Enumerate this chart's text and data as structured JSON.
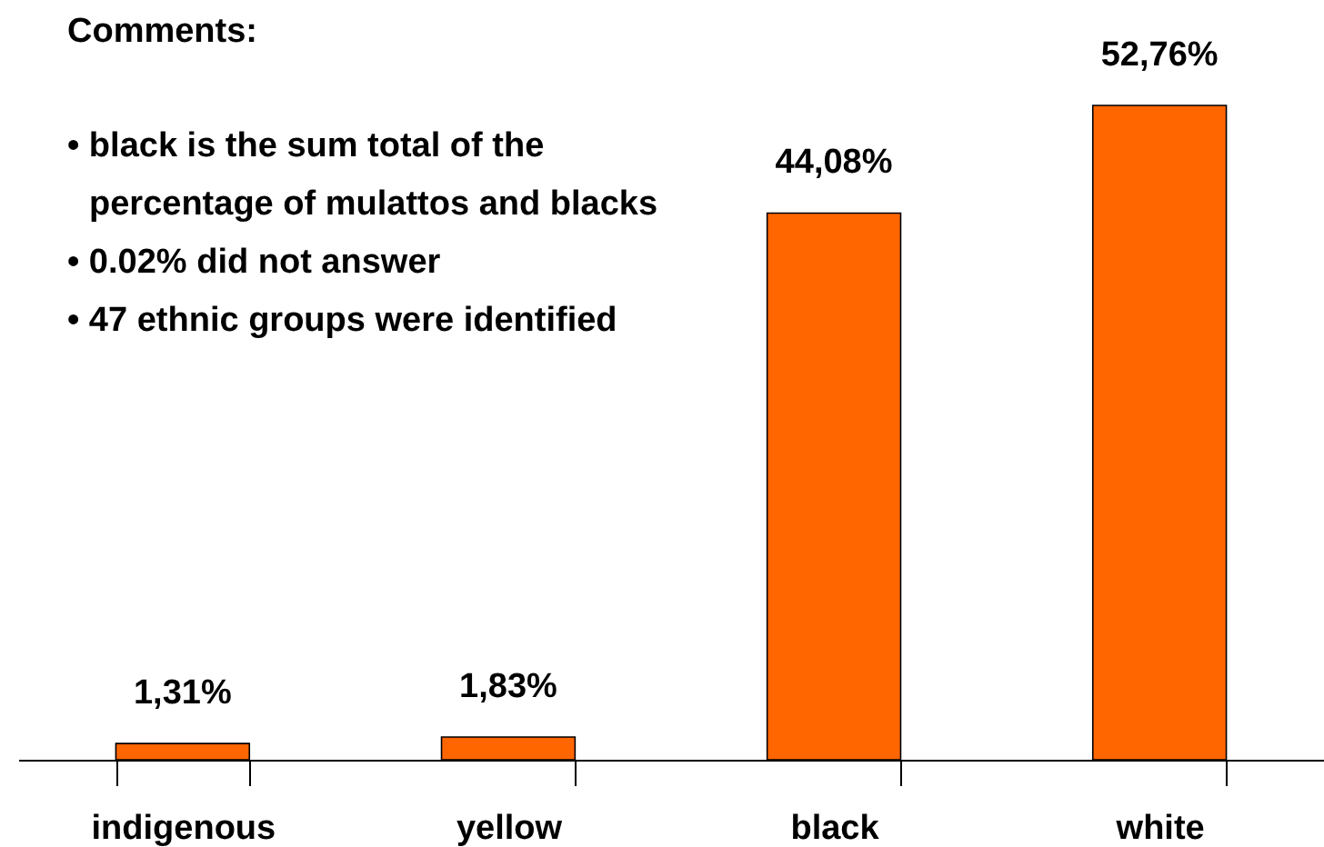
{
  "chart_data": {
    "type": "bar",
    "categories": [
      "indigenous",
      "yellow",
      "black",
      "white"
    ],
    "values": [
      1.31,
      1.83,
      44.08,
      52.76
    ],
    "value_labels": [
      "1,31%",
      "1,83%",
      "44,08%",
      "52,76%"
    ],
    "color": "#ff6600",
    "grid": false,
    "annotations": [
      "Comments:",
      "• black is the sum total of the percentage of mulattos and blacks",
      "• 0.02% did not answer",
      "• 47 ethnic groups were identified"
    ]
  }
}
